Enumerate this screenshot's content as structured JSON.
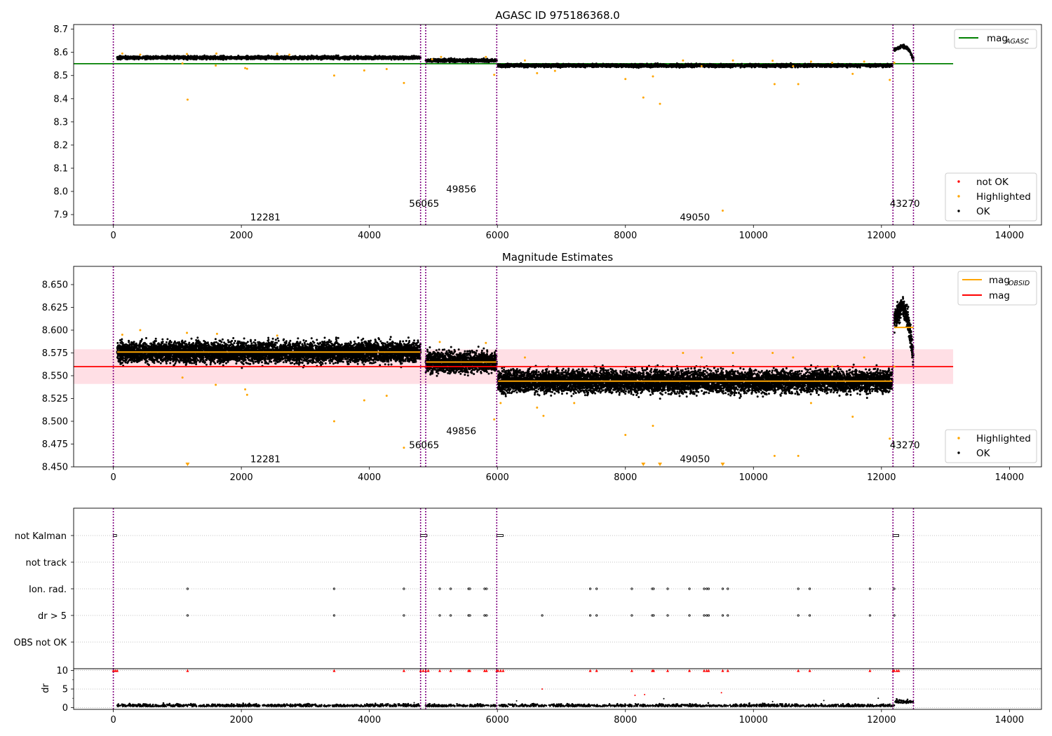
{
  "colors": {
    "ok": "#000000",
    "highlighted": "#ffa500",
    "not_ok": "#ff0000",
    "mag_agasc": "#008000",
    "mag_obsid": "#ffa500",
    "mag": "#ff0000",
    "band": "#ffc0cb",
    "obs_boundary": "#800080",
    "flag_grid": "#b0b0b0"
  },
  "chart_data": [
    {
      "type": "scatter",
      "title": "AGASC ID 975186368.0",
      "xlim": [
        -620,
        14500
      ],
      "ylim": [
        7.855,
        8.72
      ],
      "xticks": [
        0,
        2000,
        4000,
        6000,
        8000,
        10000,
        12000,
        14000
      ],
      "yticks": [
        7.9,
        8.0,
        8.1,
        8.2,
        8.3,
        8.4,
        8.5,
        8.6,
        8.7
      ],
      "grid": false,
      "lines": [
        {
          "name": "mag_AGASC",
          "label": "mag",
          "subscript": "AGASC",
          "y": 8.551,
          "x": [
            -620,
            13120
          ],
          "color": "#008000"
        }
      ],
      "series": [
        {
          "name": "not OK",
          "color": "#ff0000",
          "marker": "dot",
          "points": []
        },
        {
          "name": "Highlighted",
          "color": "#ffa500",
          "marker": "dot"
        },
        {
          "name": "OK",
          "color": "#000000",
          "marker": "dot"
        }
      ],
      "ok_segments": [
        {
          "x": [
            60,
            4800
          ],
          "center": 8.577,
          "spread": 0.006
        },
        {
          "x": [
            4880,
            5990
          ],
          "center": 8.565,
          "spread": 0.006
        },
        {
          "x": [
            6010,
            12170
          ],
          "center": 8.543,
          "spread": 0.006
        },
        {
          "x": [
            12200,
            12500
          ],
          "curve": [
            [
              12200,
              8.61
            ],
            [
              12330,
              8.628
            ],
            [
              12420,
              8.615
            ],
            [
              12500,
              8.57
            ]
          ],
          "spread": 0.006
        }
      ],
      "highlighted_points": [
        [
          140,
          8.595
        ],
        [
          420,
          8.59
        ],
        [
          1080,
          8.552
        ],
        [
          1150,
          8.593
        ],
        [
          1160,
          8.396
        ],
        [
          1600,
          8.543
        ],
        [
          1610,
          8.595
        ],
        [
          2060,
          8.532
        ],
        [
          2090,
          8.529
        ],
        [
          2560,
          8.594
        ],
        [
          2750,
          8.59
        ],
        [
          3450,
          8.5
        ],
        [
          3920,
          8.522
        ],
        [
          4270,
          8.528
        ],
        [
          4540,
          8.468
        ],
        [
          4980,
          8.57
        ],
        [
          5120,
          8.58
        ],
        [
          5820,
          8.58
        ],
        [
          5950,
          8.503
        ],
        [
          6430,
          8.565
        ],
        [
          6620,
          8.51
        ],
        [
          6900,
          8.52
        ],
        [
          8000,
          8.485
        ],
        [
          8280,
          8.405
        ],
        [
          8430,
          8.496
        ],
        [
          8540,
          8.378
        ],
        [
          8900,
          8.565
        ],
        [
          9190,
          8.54
        ],
        [
          9520,
          7.917
        ],
        [
          9680,
          8.565
        ],
        [
          10300,
          8.564
        ],
        [
          10330,
          8.463
        ],
        [
          10620,
          8.54
        ],
        [
          10700,
          8.463
        ],
        [
          10900,
          8.56
        ],
        [
          11230,
          8.555
        ],
        [
          11550,
          8.507
        ],
        [
          11730,
          8.56
        ],
        [
          12130,
          8.481
        ],
        [
          12200,
          8.555
        ]
      ],
      "obs_boundaries": [
        0,
        4800,
        4880,
        5990,
        12180,
        12500
      ],
      "annotations": [
        {
          "text": "12281",
          "x": 2140,
          "y": 7.874
        },
        {
          "text": "56065",
          "x": 4620,
          "y": 7.934
        },
        {
          "text": "49856",
          "x": 5200,
          "y": 7.995
        },
        {
          "text": "49050",
          "x": 8850,
          "y": 7.874
        },
        {
          "text": "43270",
          "x": 12130,
          "y": 7.934
        }
      ],
      "legends": [
        {
          "position": "top-right",
          "items": [
            "mag_AGASC"
          ]
        },
        {
          "position": "bottom-right",
          "items": [
            "not OK",
            "Highlighted",
            "OK"
          ]
        }
      ]
    },
    {
      "type": "scatter",
      "title": "Magnitude Estimates",
      "xlim": [
        -620,
        14500
      ],
      "ylim": [
        8.45,
        8.67
      ],
      "xticks": [
        0,
        2000,
        4000,
        6000,
        8000,
        10000,
        12000,
        14000
      ],
      "yticks": [
        8.45,
        8.475,
        8.5,
        8.525,
        8.55,
        8.575,
        8.6,
        8.625,
        8.65
      ],
      "grid": false,
      "band": {
        "y": [
          8.541,
          8.579
        ],
        "x": [
          -620,
          13120
        ],
        "color": "#ffc0cb"
      },
      "lines": [
        {
          "name": "mag",
          "label": "mag",
          "y": 8.56,
          "x": [
            -620,
            13120
          ],
          "color": "#ff0000"
        },
        {
          "name": "mag_OBSID",
          "label": "mag",
          "subscript": "OBSID",
          "color": "#ffa500",
          "segments": [
            [
              60,
              4800,
              8.576
            ],
            [
              4880,
              5990,
              8.565
            ],
            [
              6010,
              12170,
              8.544
            ],
            [
              12200,
              12500,
              8.603
            ]
          ]
        }
      ],
      "series": [
        {
          "name": "Highlighted",
          "color": "#ffa500",
          "marker": "dot"
        },
        {
          "name": "OK",
          "color": "#000000",
          "marker": "dot"
        }
      ],
      "ok_segments": [
        {
          "x": [
            60,
            4800
          ],
          "center": 8.576,
          "spread": 0.01
        },
        {
          "x": [
            4880,
            5990
          ],
          "center": 8.565,
          "spread": 0.01
        },
        {
          "x": [
            6010,
            12170
          ],
          "center": 8.544,
          "spread": 0.011
        },
        {
          "x": [
            12200,
            12500
          ],
          "curve": [
            [
              12200,
              8.61
            ],
            [
              12330,
              8.628
            ],
            [
              12420,
              8.61
            ],
            [
              12500,
              8.57
            ]
          ],
          "spread": 0.01
        }
      ],
      "highlighted_points": [
        [
          140,
          8.595
        ],
        [
          420,
          8.6
        ],
        [
          1080,
          8.548
        ],
        [
          1150,
          8.597
        ],
        [
          1600,
          8.54
        ],
        [
          1620,
          8.596
        ],
        [
          2060,
          8.535
        ],
        [
          2090,
          8.529
        ],
        [
          2560,
          8.594
        ],
        [
          3450,
          8.5
        ],
        [
          3920,
          8.523
        ],
        [
          4270,
          8.528
        ],
        [
          4540,
          8.471
        ],
        [
          5100,
          8.587
        ],
        [
          5820,
          8.586
        ],
        [
          5950,
          8.502
        ],
        [
          6050,
          8.52
        ],
        [
          6430,
          8.57
        ],
        [
          6620,
          8.515
        ],
        [
          6720,
          8.506
        ],
        [
          7200,
          8.52
        ],
        [
          8000,
          8.485
        ],
        [
          8430,
          8.495
        ],
        [
          8900,
          8.575
        ],
        [
          9190,
          8.57
        ],
        [
          9680,
          8.575
        ],
        [
          10300,
          8.575
        ],
        [
          10330,
          8.462
        ],
        [
          10620,
          8.57
        ],
        [
          10700,
          8.462
        ],
        [
          10900,
          8.52
        ],
        [
          11230,
          8.56
        ],
        [
          11550,
          8.505
        ],
        [
          11730,
          8.57
        ],
        [
          12130,
          8.481
        ],
        [
          12200,
          8.56
        ]
      ],
      "offscale_markers": [
        1160,
        8280,
        8540,
        9520
      ],
      "obs_boundaries": [
        0,
        4800,
        4880,
        5990,
        12180,
        12500
      ],
      "annotations": [
        {
          "text": "12281",
          "x": 2140,
          "y": 8.455
        },
        {
          "text": "56065",
          "x": 4620,
          "y": 8.4705
        },
        {
          "text": "49856",
          "x": 5200,
          "y": 8.4858
        },
        {
          "text": "49050",
          "x": 8850,
          "y": 8.455
        },
        {
          "text": "43270",
          "x": 12130,
          "y": 8.4705
        }
      ],
      "legends": [
        {
          "position": "top-right",
          "items": [
            "mag_OBSID",
            "mag"
          ]
        },
        {
          "position": "bottom-right",
          "items": [
            "Highlighted",
            "OK"
          ]
        }
      ]
    },
    {
      "type": "scatter",
      "title": "",
      "xlim": [
        -620,
        14500
      ],
      "flag_rows": [
        "not Kalman",
        "not track",
        "Ion. rad.",
        "dr > 5",
        "OBS not OK"
      ],
      "grid": true,
      "flag_points": {
        "not Kalman": [
          [
            0,
            50
          ],
          [
            4800,
            4900
          ],
          [
            5990,
            6090
          ],
          [
            12180,
            12270
          ]
        ],
        "not track": [],
        "Ion. rad.": [
          1160,
          3450,
          4540,
          5100,
          5270,
          5550,
          5570,
          5800,
          5830,
          7450,
          7550,
          8100,
          8420,
          8440,
          8660,
          9000,
          9230,
          9270,
          9300,
          9520,
          9600,
          10700,
          10880,
          11820,
          12200
        ],
        "dr > 5": [
          1160,
          3450,
          4540,
          5100,
          5270,
          5550,
          5570,
          5800,
          5830,
          6700,
          7450,
          7550,
          8100,
          8420,
          8440,
          8660,
          9000,
          9230,
          9270,
          9300,
          9520,
          9600,
          10700,
          10880,
          11820,
          12200
        ],
        "OBS not OK": []
      },
      "obs_boundaries": [
        0,
        4800,
        4880,
        5990,
        12180,
        12500
      ]
    },
    {
      "type": "scatter",
      "title": "",
      "xlim": [
        -620,
        14500
      ],
      "ylim": [
        -0.5,
        10.5
      ],
      "yticks": [
        0,
        5,
        10
      ],
      "ylabel": "dr",
      "grid": true,
      "base_points": {
        "x": [
          60,
          12500
        ],
        "gaps": [
          [
            4800,
            4880
          ],
          [
            5990,
            6010
          ]
        ],
        "center": 0.3,
        "spread": 0.3
      },
      "capped_points": [
        0,
        30,
        60,
        1160,
        3450,
        4540,
        4800,
        4840,
        4880,
        4920,
        5100,
        5270,
        5550,
        5570,
        5800,
        5830,
        5990,
        6010,
        6050,
        6090,
        7450,
        7550,
        8100,
        8420,
        8440,
        8660,
        9000,
        9230,
        9270,
        9300,
        9520,
        9600,
        10700,
        10880,
        11820,
        12180,
        12200,
        12240,
        12270
      ],
      "scattered_points": [
        [
          1150,
          0.7
        ],
        [
          4700,
          1.3
        ],
        [
          6300,
          1.8
        ],
        [
          6700,
          5.0
        ],
        [
          8150,
          3.3
        ],
        [
          8300,
          3.5
        ],
        [
          8600,
          2.4
        ],
        [
          9500,
          4.0
        ],
        [
          10300,
          1.6
        ],
        [
          11100,
          1.9
        ],
        [
          11950,
          2.5
        ]
      ],
      "obs_boundaries": [
        0,
        4800,
        4880,
        5990,
        12180,
        12500
      ]
    }
  ]
}
